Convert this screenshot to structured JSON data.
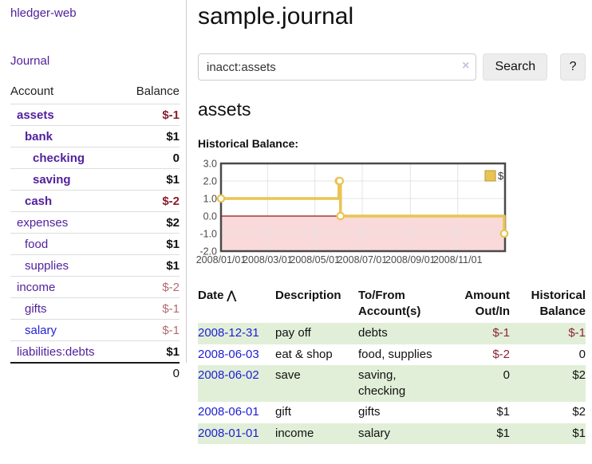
{
  "app": {
    "brand": "hledger-web"
  },
  "sidebar": {
    "journal_link": "Journal",
    "table_headers": [
      "Account",
      "Balance"
    ],
    "accounts": [
      {
        "name": "assets",
        "depth": 1,
        "bold": true,
        "balance": "$-1"
      },
      {
        "name": "bank",
        "depth": 2,
        "bold": true,
        "balance": "$1"
      },
      {
        "name": "checking",
        "depth": 3,
        "bold": true,
        "balance": "0"
      },
      {
        "name": "saving",
        "depth": 3,
        "bold": true,
        "balance": "$1"
      },
      {
        "name": "cash",
        "depth": 2,
        "bold": true,
        "balance": "$-2"
      },
      {
        "name": "expenses",
        "depth": 1,
        "bold": false,
        "balance": "$2"
      },
      {
        "name": "food",
        "depth": 2,
        "bold": false,
        "balance": "$1"
      },
      {
        "name": "supplies",
        "depth": 2,
        "bold": false,
        "balance": "$1"
      },
      {
        "name": "income",
        "depth": 1,
        "bold": false,
        "balance": "$-2"
      },
      {
        "name": "gifts",
        "depth": 2,
        "bold": false,
        "balance": "$-1"
      },
      {
        "name": "salary",
        "depth": 2,
        "bold": false,
        "balance": "$-1",
        "unvisited": true
      },
      {
        "name": "liabilities:debts",
        "depth": 1,
        "bold": false,
        "balance": "$1"
      }
    ],
    "total": "0"
  },
  "header": {
    "title": "sample.journal"
  },
  "search": {
    "value": "inacct:assets",
    "clear_icon": "×",
    "button_label": "Search",
    "help_label": "?"
  },
  "account_page": {
    "title": "assets",
    "chart_label": "Historical Balance:"
  },
  "chart_data": {
    "type": "line",
    "step": true,
    "title": "Historical Balance",
    "series": [
      {
        "name": "$",
        "color": "#e9c452",
        "points": [
          [
            "2008-01-01",
            1
          ],
          [
            "2008-06-01",
            2
          ],
          [
            "2008-06-02",
            2
          ],
          [
            "2008-06-03",
            0
          ],
          [
            "2008-12-31",
            -1
          ]
        ]
      }
    ],
    "x_range": [
      "2008-01-01",
      "2009-01-01"
    ],
    "ylim": [
      -2,
      3
    ],
    "y_ticks": [
      "3.0",
      "2.0",
      "1.0",
      "0.0",
      "-1.0",
      "-2.0"
    ],
    "x_ticks": [
      "2008/01/01",
      "2008/03/01",
      "2008/05/01",
      "2008/07/01",
      "2008/09/01",
      "2008/11/01"
    ],
    "grid": true,
    "negative_region_color": "#f9d9d9",
    "zero_line_color": "#991717",
    "legend": {
      "label": "$",
      "position": "top-right"
    }
  },
  "register": {
    "headers": [
      "Date",
      "Description",
      "To/From Account(s)",
      "Amount Out/In",
      "Historical Balance"
    ],
    "sort_icon": "⋀",
    "rows": [
      {
        "date": "2008-12-31",
        "description": "pay off",
        "accounts": "debts",
        "amount": "$-1",
        "balance": "$-1"
      },
      {
        "date": "2008-06-03",
        "description": "eat & shop",
        "accounts": "food, supplies",
        "amount": "$-2",
        "balance": "0"
      },
      {
        "date": "2008-06-02",
        "description": "save",
        "accounts": "saving, checking",
        "amount": "0",
        "balance": "$2"
      },
      {
        "date": "2008-06-01",
        "description": "gift",
        "accounts": "gifts",
        "amount": "$1",
        "balance": "$2"
      },
      {
        "date": "2008-01-01",
        "description": "income",
        "accounts": "salary",
        "amount": "$1",
        "balance": "$1"
      }
    ]
  }
}
